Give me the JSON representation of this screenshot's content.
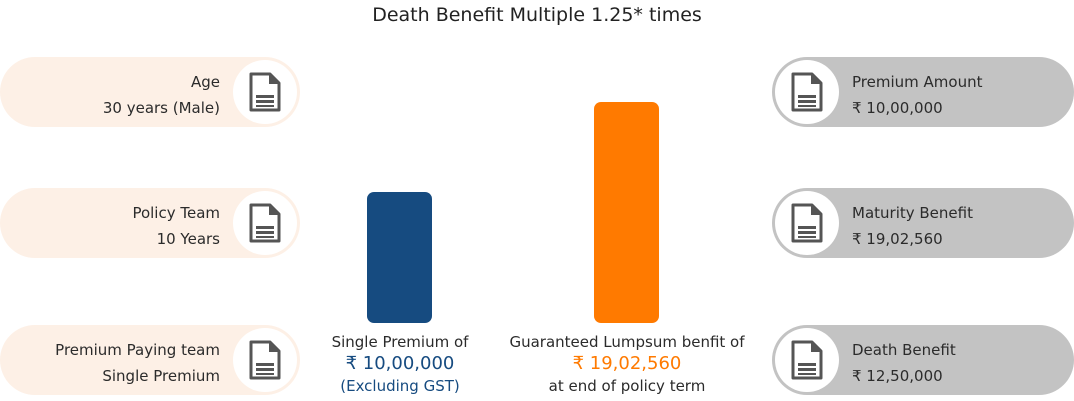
{
  "title": "Death Benefit Multiple 1.25* times",
  "left_items": [
    {
      "label": "Age",
      "value": "30 years (Male)",
      "icon": "document-icon"
    },
    {
      "label": "Policy Team",
      "value": "10 Years",
      "icon": "document-icon"
    },
    {
      "label": "Premium Paying team",
      "value": "Single Premium",
      "icon": "document-icon"
    }
  ],
  "right_items": [
    {
      "label": "Premium Amount",
      "value": "₹ 10,00,000",
      "icon": "document-icon"
    },
    {
      "label": "Maturity Benefit",
      "value": "₹ 19,02,560",
      "icon": "document-icon"
    },
    {
      "label": "Death Benefit",
      "value": "₹ 12,50,000",
      "icon": "document-icon"
    }
  ],
  "chart_data": {
    "type": "bar",
    "categories": [
      "Single Premium",
      "Guaranteed Lumpsum benefit"
    ],
    "values": [
      1000000,
      1902560
    ],
    "colors": [
      "#164b80",
      "#ff7a00"
    ]
  },
  "captions": {
    "premium_label": "Single Premium of",
    "premium_amount": "₹ 10,00,000",
    "premium_note": "(Excluding GST)",
    "benefit_label": "Guaranteed Lumpsum benfit of",
    "benefit_amount": "₹ 19,02,560",
    "benefit_note": "at end of policy term"
  },
  "colors": {
    "left_pill": "#fdf0e6",
    "right_pill": "#c3c3c3",
    "navy": "#164b80",
    "orange": "#ff7a00"
  }
}
